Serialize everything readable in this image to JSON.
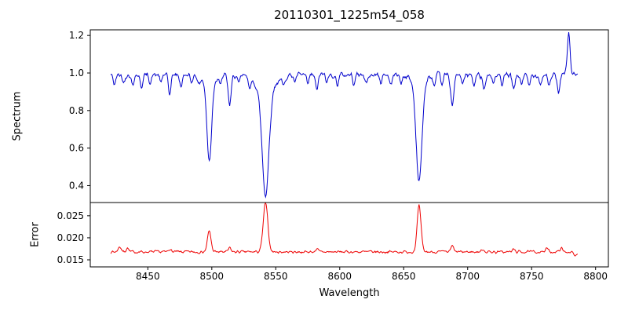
{
  "chart_data": [
    {
      "type": "line",
      "name": "spectrum",
      "title": "20110301_1225m54_058",
      "xlabel": "Wavelength",
      "ylabel": "Spectrum",
      "color": "#0000cc",
      "grid": false,
      "legend": null,
      "xlim": [
        8405,
        8810
      ],
      "ylim": [
        0.31,
        1.23
      ],
      "xticks": [
        8450,
        8500,
        8550,
        8600,
        8650,
        8700,
        8750,
        8800
      ],
      "xticklabels": [
        "8450",
        "8500",
        "8550",
        "8600",
        "8650",
        "8700",
        "8750",
        "8800"
      ],
      "yticks": [
        0.4,
        0.6,
        0.8,
        1.0,
        1.2
      ],
      "yticklabels": [
        "0.4",
        "0.6",
        "0.8",
        "1.0",
        "1.2"
      ],
      "x_start": 8421,
      "x_end": 8786,
      "continuum": 0.99,
      "noise_amplitude": 0.022,
      "absorption_lines": [
        {
          "center": 8498,
          "depth": 0.41,
          "width": 1.8
        },
        {
          "center": 8498,
          "depth": 0.05,
          "width": 4.0
        },
        {
          "center": 8514,
          "depth": 0.16,
          "width": 1.2
        },
        {
          "center": 8542,
          "depth": 0.55,
          "width": 2.6
        },
        {
          "center": 8542,
          "depth": 0.09,
          "width": 7.0
        },
        {
          "center": 8662,
          "depth": 0.51,
          "width": 2.2
        },
        {
          "center": 8662,
          "depth": 0.06,
          "width": 5.0
        },
        {
          "center": 8688,
          "depth": 0.15,
          "width": 1.3
        }
      ],
      "minor_lines": [
        {
          "center": 8424,
          "depth": 0.05,
          "width": 1.0
        },
        {
          "center": 8431,
          "depth": 0.04,
          "width": 0.9
        },
        {
          "center": 8438,
          "depth": 0.05,
          "width": 1.0
        },
        {
          "center": 8445,
          "depth": 0.06,
          "width": 1.1
        },
        {
          "center": 8452,
          "depth": 0.04,
          "width": 0.9
        },
        {
          "center": 8460,
          "depth": 0.04,
          "width": 0.9
        },
        {
          "center": 8467,
          "depth": 0.1,
          "width": 1.0
        },
        {
          "center": 8476,
          "depth": 0.06,
          "width": 1.0
        },
        {
          "center": 8484,
          "depth": 0.04,
          "width": 0.9
        },
        {
          "center": 8490,
          "depth": 0.05,
          "width": 0.9
        },
        {
          "center": 8507,
          "depth": 0.05,
          "width": 0.9
        },
        {
          "center": 8521,
          "depth": 0.05,
          "width": 1.0
        },
        {
          "center": 8530,
          "depth": 0.05,
          "width": 1.0
        },
        {
          "center": 8556,
          "depth": 0.05,
          "width": 1.0
        },
        {
          "center": 8565,
          "depth": 0.04,
          "width": 0.9
        },
        {
          "center": 8575,
          "depth": 0.05,
          "width": 1.0
        },
        {
          "center": 8582,
          "depth": 0.08,
          "width": 1.0
        },
        {
          "center": 8590,
          "depth": 0.04,
          "width": 0.9
        },
        {
          "center": 8598,
          "depth": 0.05,
          "width": 1.0
        },
        {
          "center": 8611,
          "depth": 0.04,
          "width": 0.9
        },
        {
          "center": 8621,
          "depth": 0.05,
          "width": 1.0
        },
        {
          "center": 8632,
          "depth": 0.04,
          "width": 0.9
        },
        {
          "center": 8640,
          "depth": 0.05,
          "width": 1.0
        },
        {
          "center": 8648,
          "depth": 0.04,
          "width": 0.9
        },
        {
          "center": 8674,
          "depth": 0.06,
          "width": 1.0
        },
        {
          "center": 8680,
          "depth": 0.05,
          "width": 0.9
        },
        {
          "center": 8696,
          "depth": 0.05,
          "width": 1.0
        },
        {
          "center": 8705,
          "depth": 0.06,
          "width": 1.0
        },
        {
          "center": 8713,
          "depth": 0.07,
          "width": 1.0
        },
        {
          "center": 8720,
          "depth": 0.05,
          "width": 0.9
        },
        {
          "center": 8727,
          "depth": 0.06,
          "width": 1.0
        },
        {
          "center": 8736,
          "depth": 0.08,
          "width": 1.1
        },
        {
          "center": 8742,
          "depth": 0.05,
          "width": 0.9
        },
        {
          "center": 8748,
          "depth": 0.06,
          "width": 1.0
        },
        {
          "center": 8757,
          "depth": 0.05,
          "width": 0.9
        },
        {
          "center": 8764,
          "depth": 0.06,
          "width": 1.0
        },
        {
          "center": 8771,
          "depth": 0.09,
          "width": 1.0
        }
      ],
      "emission_spike": {
        "center": 8779,
        "height": 0.22,
        "width": 1.1
      }
    },
    {
      "type": "line",
      "name": "error",
      "xlabel": "Wavelength",
      "ylabel": "Error",
      "color": "#ee0000",
      "grid": false,
      "legend": null,
      "xlim": [
        8405,
        8810
      ],
      "ylim": [
        0.0134,
        0.028
      ],
      "yticks": [
        0.015,
        0.02,
        0.025
      ],
      "yticklabels": [
        "0.015",
        "0.020",
        "0.025"
      ],
      "x_start": 8421,
      "x_end": 8786,
      "baseline": 0.0168,
      "noise_amplitude": 0.00045,
      "peaks": [
        {
          "center": 8428,
          "height": 0.0012,
          "width": 1.2
        },
        {
          "center": 8434,
          "height": 0.0009,
          "width": 1.0
        },
        {
          "center": 8467,
          "height": 0.0007,
          "width": 1.0
        },
        {
          "center": 8498,
          "height": 0.0047,
          "width": 1.4
        },
        {
          "center": 8514,
          "height": 0.0009,
          "width": 1.0
        },
        {
          "center": 8542,
          "height": 0.011,
          "width": 1.8
        },
        {
          "center": 8582,
          "height": 0.0007,
          "width": 1.0
        },
        {
          "center": 8662,
          "height": 0.0104,
          "width": 1.5
        },
        {
          "center": 8688,
          "height": 0.0013,
          "width": 1.1
        },
        {
          "center": 8712,
          "height": 0.0006,
          "width": 1.0
        },
        {
          "center": 8736,
          "height": 0.0006,
          "width": 1.0
        },
        {
          "center": 8762,
          "height": 0.0008,
          "width": 1.0
        },
        {
          "center": 8773,
          "height": 0.0009,
          "width": 1.0
        },
        {
          "center": 8784,
          "height": -0.001,
          "width": 1.2
        }
      ]
    }
  ]
}
